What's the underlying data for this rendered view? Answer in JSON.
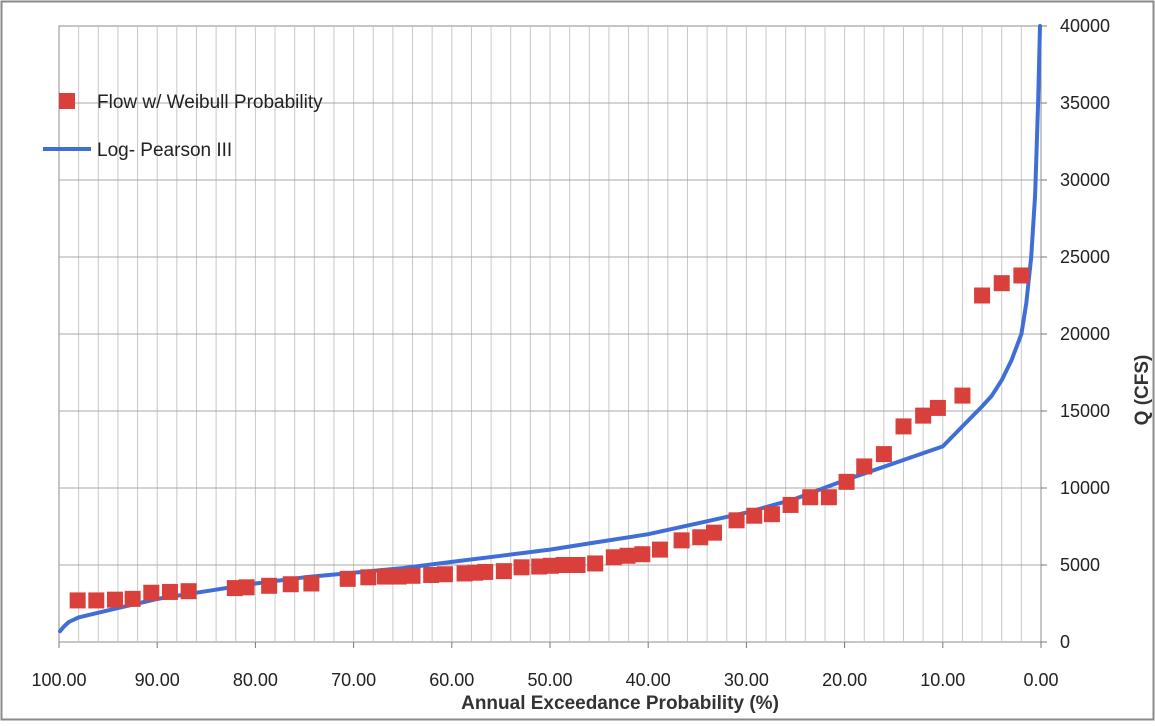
{
  "chart_data": {
    "type": "scatter",
    "xlabel": "Annual Exceedance Probability (%)",
    "ylabel": "Q (CFS)",
    "x_reversed": true,
    "xlim": [
      100,
      0
    ],
    "ylim": [
      0,
      40000
    ],
    "x_ticks": [
      "100.00",
      "90.00",
      "80.00",
      "70.00",
      "60.00",
      "50.00",
      "40.00",
      "30.00",
      "20.00",
      "10.00",
      "0.00"
    ],
    "y_ticks": [
      "0",
      "5000",
      "10000",
      "15000",
      "20000",
      "25000",
      "30000",
      "35000",
      "40000"
    ],
    "y_axis_side": "right",
    "grid": true,
    "legend_position": "top-left",
    "series": [
      {
        "name": "Flow w/ Weibull Probability",
        "kind": "markers",
        "color": "#d9403b",
        "x": [
          98.1,
          96.2,
          94.3,
          92.5,
          90.6,
          88.7,
          86.8,
          82.1,
          80.9,
          78.6,
          76.4,
          74.3,
          70.6,
          68.5,
          66.8,
          65.4,
          64.0,
          62.1,
          60.7,
          58.7,
          57.6,
          56.6,
          54.7,
          52.9,
          51.1,
          49.9,
          48.6,
          47.2,
          45.4,
          43.5,
          42.1,
          40.6,
          38.8,
          36.6,
          34.7,
          33.3,
          31.0,
          29.2,
          27.4,
          25.5,
          23.5,
          21.6,
          19.8,
          18.0,
          16.0,
          14.0,
          12.0,
          10.5,
          8.0,
          6.0,
          4.0,
          2.0
        ],
        "y": [
          2700,
          2700,
          2750,
          2800,
          3200,
          3250,
          3300,
          3500,
          3550,
          3650,
          3750,
          3800,
          4100,
          4200,
          4250,
          4250,
          4300,
          4350,
          4400,
          4450,
          4500,
          4550,
          4600,
          4850,
          4900,
          4950,
          5000,
          5000,
          5100,
          5500,
          5600,
          5700,
          6000,
          6600,
          6800,
          7100,
          7900,
          8200,
          8300,
          8900,
          9400,
          9400,
          10400,
          11400,
          12200,
          14000,
          14700,
          15200,
          16000,
          22500,
          23300,
          23800
        ]
      },
      {
        "name": "Log- Pearson III",
        "kind": "line",
        "color": "#3f6fd6",
        "x": [
          99.9,
          99.5,
          99,
          98,
          96,
          94,
          92,
          90,
          85,
          80,
          75,
          70,
          65,
          60,
          55,
          50,
          45,
          40,
          35,
          30,
          25,
          20,
          15,
          10,
          8,
          6,
          5,
          4,
          3,
          2,
          1.5,
          1.0,
          0.6,
          0.3,
          0.1
        ],
        "y": [
          700,
          1000,
          1300,
          1600,
          1900,
          2200,
          2500,
          2800,
          3300,
          3800,
          4200,
          4500,
          4800,
          5200,
          5600,
          6000,
          6500,
          7000,
          7700,
          8400,
          9300,
          10500,
          11600,
          12700,
          14000,
          15300,
          16000,
          17000,
          18300,
          20000,
          22000,
          25000,
          29000,
          35000,
          40000
        ]
      }
    ]
  }
}
